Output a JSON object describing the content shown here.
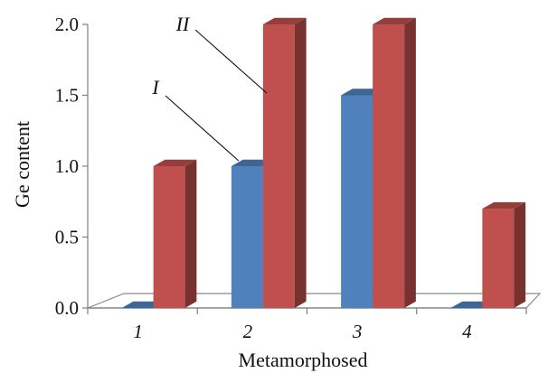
{
  "chart_data": {
    "type": "bar",
    "categories": [
      "1",
      "2",
      "3",
      "4"
    ],
    "series": [
      {
        "name": "I",
        "values": [
          0,
          1.0,
          1.5,
          0
        ],
        "color": "#4f81bd"
      },
      {
        "name": "II",
        "values": [
          1.0,
          2.0,
          2.0,
          0.7
        ],
        "color": "#c0504d"
      }
    ],
    "xlabel": "Metamorphosed",
    "ylabel": "Ge content",
    "ylim": [
      0,
      2.0
    ],
    "yticks": [
      "0.0",
      "0.5",
      "1.0",
      "1.5",
      "2.0"
    ],
    "grid": false,
    "legend": "none",
    "style": "3d-clustered"
  }
}
